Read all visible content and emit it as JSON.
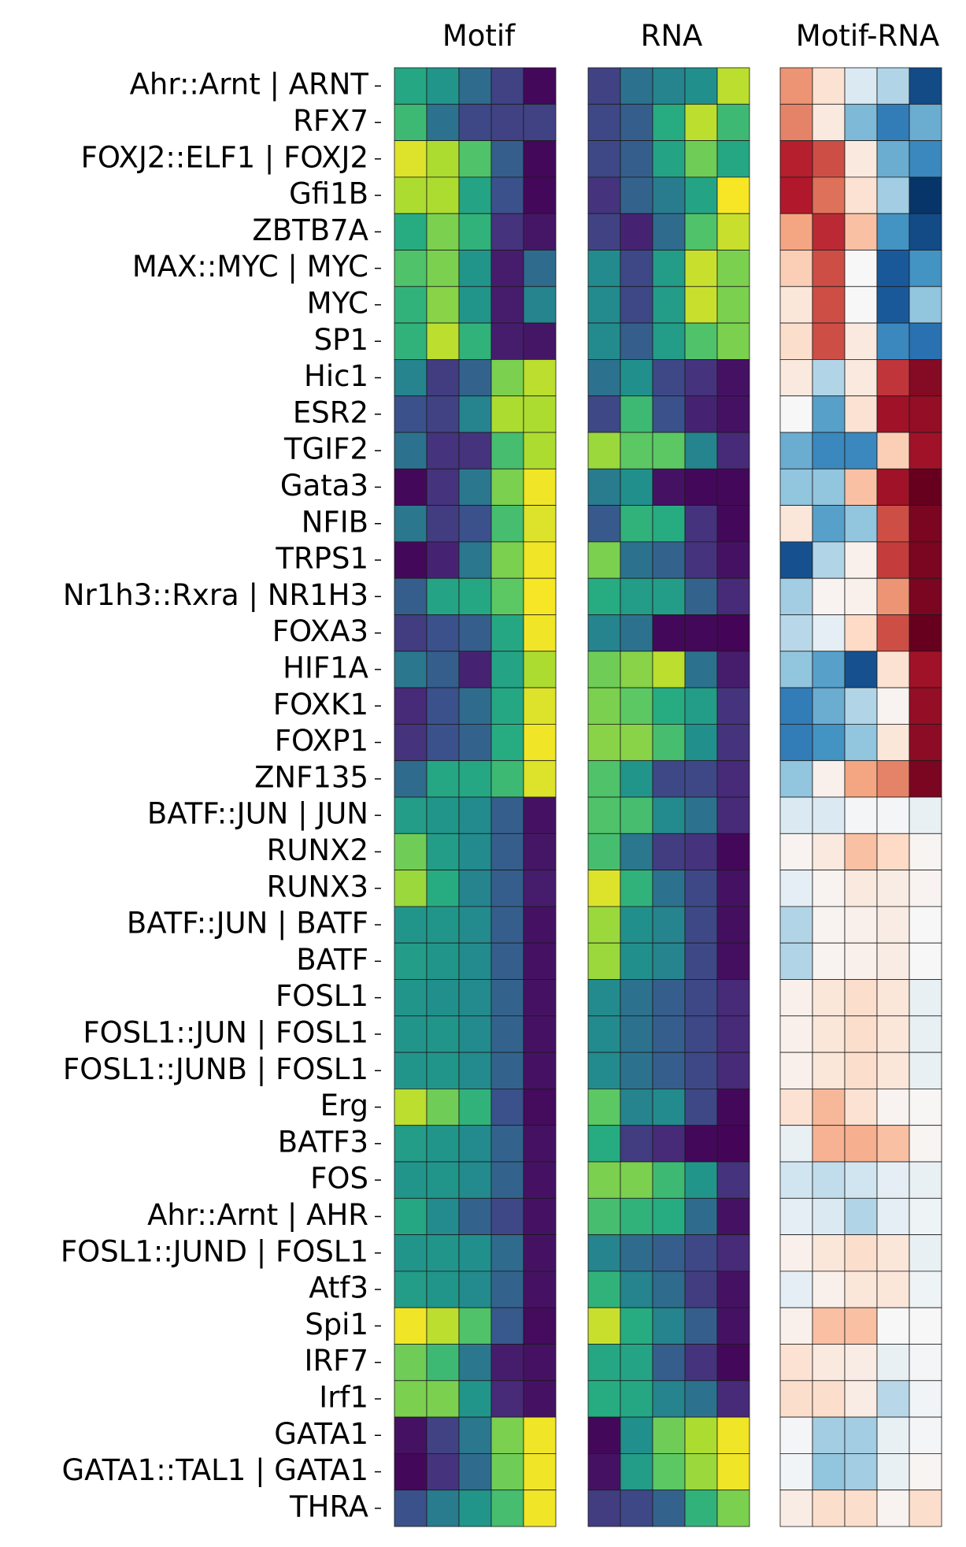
{
  "chart_data": {
    "type": "heatmap",
    "panels": [
      {
        "title": "Motif",
        "colormap": "viridis",
        "range": [
          0,
          1
        ]
      },
      {
        "title": "RNA",
        "colormap": "viridis",
        "range": [
          0,
          1
        ]
      },
      {
        "title": "Motif-RNA",
        "colormap": "RdBu_r",
        "range": [
          -1,
          1
        ]
      }
    ],
    "rows": [
      "Ahr::Arnt | ARNT",
      "RFX7",
      "FOXJ2::ELF1 | FOXJ2",
      "Gfi1B",
      "ZBTB7A",
      "MAX::MYC | MYC",
      "MYC",
      "SP1",
      "Hic1",
      "ESR2",
      "TGIF2",
      "Gata3",
      "NFIB",
      "TRPS1",
      "Nr1h3::Rxra | NR1H3",
      "FOXA3",
      "HIF1A",
      "FOXK1",
      "FOXP1",
      "ZNF135",
      "BATF::JUN | JUN",
      "RUNX2",
      "RUNX3",
      "BATF::JUN | BATF",
      "BATF",
      "FOSL1",
      "FOSL1::JUN | FOSL1",
      "FOSL1::JUNB | FOSL1",
      "Erg",
      "BATF3",
      "FOS",
      "Ahr::Arnt | AHR",
      "FOSL1::JUND | FOSL1",
      "Atf3",
      "Spi1",
      "IRF7",
      "Irf1",
      "GATA1",
      "GATA1::TAL1 | GATA1",
      "THRA"
    ],
    "motif": [
      [
        0.6,
        0.52,
        0.35,
        0.2,
        0.02
      ],
      [
        0.68,
        0.38,
        0.22,
        0.2,
        0.2
      ],
      [
        0.95,
        0.88,
        0.72,
        0.3,
        0.02
      ],
      [
        0.88,
        0.88,
        0.58,
        0.25,
        0.02
      ],
      [
        0.62,
        0.8,
        0.65,
        0.15,
        0.06
      ],
      [
        0.72,
        0.8,
        0.52,
        0.08,
        0.35
      ],
      [
        0.65,
        0.82,
        0.52,
        0.08,
        0.45
      ],
      [
        0.65,
        0.9,
        0.65,
        0.08,
        0.06
      ],
      [
        0.45,
        0.18,
        0.32,
        0.8,
        0.9
      ],
      [
        0.25,
        0.2,
        0.45,
        0.88,
        0.88
      ],
      [
        0.38,
        0.15,
        0.15,
        0.7,
        0.88
      ],
      [
        0.02,
        0.15,
        0.4,
        0.8,
        0.98
      ],
      [
        0.4,
        0.18,
        0.25,
        0.7,
        0.95
      ],
      [
        0.02,
        0.1,
        0.4,
        0.8,
        0.98
      ],
      [
        0.3,
        0.58,
        0.6,
        0.75,
        0.99
      ],
      [
        0.18,
        0.25,
        0.3,
        0.6,
        0.98
      ],
      [
        0.4,
        0.3,
        0.1,
        0.58,
        0.88
      ],
      [
        0.12,
        0.25,
        0.35,
        0.6,
        0.95
      ],
      [
        0.15,
        0.25,
        0.32,
        0.62,
        0.98
      ],
      [
        0.35,
        0.6,
        0.6,
        0.68,
        0.95
      ],
      [
        0.55,
        0.52,
        0.48,
        0.3,
        0.05
      ],
      [
        0.78,
        0.55,
        0.48,
        0.3,
        0.06
      ],
      [
        0.85,
        0.62,
        0.45,
        0.3,
        0.08
      ],
      [
        0.52,
        0.52,
        0.48,
        0.3,
        0.05
      ],
      [
        0.55,
        0.52,
        0.48,
        0.3,
        0.05
      ],
      [
        0.52,
        0.5,
        0.48,
        0.32,
        0.05
      ],
      [
        0.52,
        0.52,
        0.48,
        0.32,
        0.05
      ],
      [
        0.52,
        0.52,
        0.48,
        0.32,
        0.05
      ],
      [
        0.9,
        0.78,
        0.65,
        0.25,
        0.03
      ],
      [
        0.55,
        0.52,
        0.48,
        0.32,
        0.05
      ],
      [
        0.52,
        0.52,
        0.48,
        0.32,
        0.05
      ],
      [
        0.6,
        0.48,
        0.32,
        0.22,
        0.05
      ],
      [
        0.52,
        0.52,
        0.5,
        0.35,
        0.05
      ],
      [
        0.55,
        0.52,
        0.48,
        0.32,
        0.05
      ],
      [
        0.98,
        0.9,
        0.72,
        0.28,
        0.03
      ],
      [
        0.78,
        0.68,
        0.4,
        0.08,
        0.05
      ],
      [
        0.8,
        0.8,
        0.52,
        0.12,
        0.05
      ],
      [
        0.05,
        0.2,
        0.4,
        0.8,
        0.98
      ],
      [
        0.02,
        0.15,
        0.35,
        0.78,
        0.98
      ],
      [
        0.25,
        0.42,
        0.52,
        0.7,
        0.98
      ]
    ],
    "rna": [
      [
        0.2,
        0.38,
        0.45,
        0.5,
        0.9
      ],
      [
        0.22,
        0.3,
        0.62,
        0.9,
        0.68
      ],
      [
        0.22,
        0.3,
        0.58,
        0.78,
        0.6
      ],
      [
        0.15,
        0.32,
        0.42,
        0.58,
        0.99
      ],
      [
        0.2,
        0.1,
        0.35,
        0.72,
        0.92
      ],
      [
        0.48,
        0.22,
        0.55,
        0.92,
        0.8
      ],
      [
        0.48,
        0.22,
        0.55,
        0.92,
        0.8
      ],
      [
        0.48,
        0.3,
        0.55,
        0.72,
        0.8
      ],
      [
        0.38,
        0.5,
        0.22,
        0.15,
        0.05
      ],
      [
        0.22,
        0.68,
        0.25,
        0.1,
        0.05
      ],
      [
        0.85,
        0.75,
        0.75,
        0.45,
        0.12
      ],
      [
        0.42,
        0.5,
        0.05,
        0.02,
        0.02
      ],
      [
        0.28,
        0.65,
        0.62,
        0.15,
        0.02
      ],
      [
        0.8,
        0.38,
        0.32,
        0.15,
        0.05
      ],
      [
        0.62,
        0.55,
        0.55,
        0.32,
        0.12
      ],
      [
        0.45,
        0.38,
        0.02,
        0.02,
        0.01
      ],
      [
        0.78,
        0.82,
        0.9,
        0.38,
        0.08
      ],
      [
        0.8,
        0.75,
        0.62,
        0.55,
        0.15
      ],
      [
        0.82,
        0.82,
        0.7,
        0.5,
        0.15
      ],
      [
        0.72,
        0.52,
        0.22,
        0.22,
        0.12
      ],
      [
        0.72,
        0.7,
        0.48,
        0.38,
        0.12
      ],
      [
        0.7,
        0.4,
        0.18,
        0.15,
        0.02
      ],
      [
        0.95,
        0.65,
        0.38,
        0.22,
        0.05
      ],
      [
        0.85,
        0.5,
        0.45,
        0.22,
        0.04
      ],
      [
        0.85,
        0.5,
        0.45,
        0.22,
        0.04
      ],
      [
        0.48,
        0.38,
        0.3,
        0.22,
        0.12
      ],
      [
        0.48,
        0.38,
        0.3,
        0.22,
        0.12
      ],
      [
        0.48,
        0.38,
        0.3,
        0.22,
        0.12
      ],
      [
        0.75,
        0.45,
        0.48,
        0.22,
        0.02
      ],
      [
        0.62,
        0.18,
        0.12,
        0.02,
        0.01
      ],
      [
        0.8,
        0.8,
        0.68,
        0.52,
        0.15
      ],
      [
        0.7,
        0.65,
        0.62,
        0.35,
        0.05
      ],
      [
        0.45,
        0.35,
        0.3,
        0.22,
        0.12
      ],
      [
        0.65,
        0.45,
        0.35,
        0.18,
        0.05
      ],
      [
        0.92,
        0.62,
        0.45,
        0.3,
        0.05
      ],
      [
        0.6,
        0.58,
        0.3,
        0.15,
        0.02
      ],
      [
        0.62,
        0.6,
        0.45,
        0.38,
        0.12
      ],
      [
        0.02,
        0.5,
        0.78,
        0.88,
        0.98
      ],
      [
        0.05,
        0.55,
        0.75,
        0.85,
        0.98
      ],
      [
        0.18,
        0.22,
        0.32,
        0.65,
        0.8
      ]
    ],
    "diff": [
      [
        0.45,
        0.15,
        -0.15,
        -0.3,
        -0.9
      ],
      [
        0.5,
        0.1,
        -0.45,
        -0.7,
        -0.5
      ],
      [
        0.78,
        0.65,
        0.1,
        -0.5,
        -0.65
      ],
      [
        0.8,
        0.55,
        0.15,
        -0.35,
        -0.98
      ],
      [
        0.4,
        0.75,
        0.3,
        -0.6,
        -0.9
      ],
      [
        0.25,
        0.65,
        0.0,
        -0.85,
        -0.6
      ],
      [
        0.12,
        0.65,
        0.0,
        -0.85,
        -0.4
      ],
      [
        0.18,
        0.65,
        0.1,
        -0.65,
        -0.75
      ],
      [
        0.1,
        -0.3,
        0.1,
        0.72,
        0.92
      ],
      [
        0.0,
        -0.55,
        0.15,
        0.85,
        0.88
      ],
      [
        -0.5,
        -0.65,
        -0.65,
        0.25,
        0.85
      ],
      [
        -0.4,
        -0.4,
        0.3,
        0.85,
        1.0
      ],
      [
        0.12,
        -0.55,
        -0.4,
        0.65,
        0.95
      ],
      [
        -0.88,
        -0.3,
        0.05,
        0.7,
        0.95
      ],
      [
        -0.35,
        0.03,
        0.05,
        0.45,
        0.95
      ],
      [
        -0.28,
        -0.1,
        0.2,
        0.65,
        1.0
      ],
      [
        -0.4,
        -0.55,
        -0.88,
        0.15,
        0.85
      ],
      [
        -0.7,
        -0.5,
        -0.3,
        0.03,
        0.88
      ],
      [
        -0.7,
        -0.6,
        -0.4,
        0.12,
        0.9
      ],
      [
        -0.4,
        0.05,
        0.4,
        0.5,
        0.95
      ],
      [
        -0.15,
        -0.15,
        -0.02,
        -0.02,
        -0.08
      ],
      [
        0.03,
        0.1,
        0.3,
        0.2,
        0.02
      ],
      [
        -0.1,
        0.03,
        0.1,
        0.08,
        0.03
      ],
      [
        -0.3,
        0.03,
        0.05,
        0.08,
        0.0
      ],
      [
        -0.3,
        0.03,
        0.05,
        0.08,
        0.0
      ],
      [
        0.05,
        0.12,
        0.18,
        0.12,
        -0.08
      ],
      [
        0.05,
        0.12,
        0.18,
        0.12,
        -0.08
      ],
      [
        0.05,
        0.12,
        0.18,
        0.12,
        -0.08
      ],
      [
        0.15,
        0.33,
        0.15,
        0.03,
        0.01
      ],
      [
        -0.08,
        0.35,
        0.36,
        0.3,
        0.02
      ],
      [
        -0.2,
        -0.25,
        -0.2,
        -0.1,
        -0.08
      ],
      [
        -0.1,
        -0.15,
        -0.3,
        -0.1,
        -0.05
      ],
      [
        0.05,
        0.12,
        0.18,
        0.12,
        -0.08
      ],
      [
        -0.1,
        0.05,
        0.12,
        0.12,
        -0.05
      ],
      [
        0.05,
        0.3,
        0.3,
        0.0,
        0.0
      ],
      [
        0.15,
        0.1,
        0.08,
        -0.08,
        -0.02
      ],
      [
        0.18,
        0.18,
        0.08,
        -0.28,
        -0.03
      ],
      [
        -0.02,
        -0.35,
        -0.35,
        -0.08,
        -0.02
      ],
      [
        -0.03,
        -0.4,
        -0.35,
        -0.08,
        0.02
      ],
      [
        0.08,
        0.18,
        0.18,
        0.03,
        0.18
      ]
    ]
  }
}
